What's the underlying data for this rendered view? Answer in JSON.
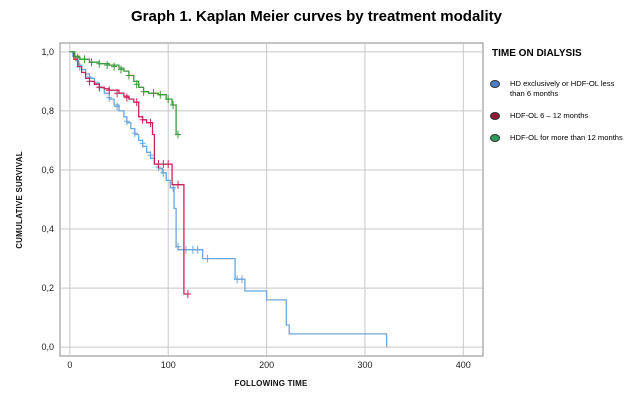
{
  "title": "Graph 1. Kaplan Meier curves by treatment modality",
  "legend": {
    "title": "TIME ON DIALYSIS"
  },
  "chart_data": {
    "type": "line",
    "title": "Graph 1. Kaplan Meier curves by treatment modality",
    "xlabel": "FOLLOWING TIME",
    "ylabel": "CUMULATIVE SURVIVAL",
    "xlim": [
      -10,
      420
    ],
    "ylim": [
      -0.03,
      1.03
    ],
    "xticks": [
      0,
      100,
      200,
      300,
      400
    ],
    "xtick_labels": [
      "0",
      "100",
      "200",
      "300",
      "400"
    ],
    "yticks": [
      0.0,
      0.2,
      0.4,
      0.6,
      0.8,
      1.0
    ],
    "ytick_labels": [
      "0,0",
      "0,2",
      "0,4",
      "0,6",
      "0,8",
      "1,0"
    ],
    "grid": true,
    "legend_position": "right",
    "series": [
      {
        "name": "HD exclusively or HDF-OL less than 6 months",
        "color": "#6ea6dc",
        "legend_color": "#4a7fc8",
        "steps": [
          [
            0,
            1.0
          ],
          [
            3,
            0.985
          ],
          [
            6,
            0.97
          ],
          [
            9,
            0.955
          ],
          [
            12,
            0.94
          ],
          [
            16,
            0.925
          ],
          [
            20,
            0.91
          ],
          [
            25,
            0.895
          ],
          [
            30,
            0.878
          ],
          [
            35,
            0.86
          ],
          [
            40,
            0.84
          ],
          [
            45,
            0.82
          ],
          [
            50,
            0.8
          ],
          [
            55,
            0.78
          ],
          [
            58,
            0.76
          ],
          [
            62,
            0.74
          ],
          [
            66,
            0.72
          ],
          [
            70,
            0.7
          ],
          [
            74,
            0.68
          ],
          [
            78,
            0.66
          ],
          [
            82,
            0.64
          ],
          [
            86,
            0.62
          ],
          [
            90,
            0.605
          ],
          [
            94,
            0.59
          ],
          [
            98,
            0.565
          ],
          [
            102,
            0.54
          ],
          [
            106,
            0.47
          ],
          [
            108,
            0.34
          ],
          [
            110,
            0.33
          ],
          [
            135,
            0.3
          ],
          [
            168,
            0.23
          ],
          [
            178,
            0.19
          ],
          [
            200,
            0.16
          ],
          [
            220,
            0.075
          ],
          [
            223,
            0.045
          ],
          [
            322,
            0.045
          ]
        ],
        "end_x": 322,
        "vline_to": 0.0,
        "censored": [
          [
            10,
            0.95
          ],
          [
            20,
            0.915
          ],
          [
            30,
            0.88
          ],
          [
            40,
            0.845
          ],
          [
            48,
            0.815
          ],
          [
            58,
            0.765
          ],
          [
            66,
            0.725
          ],
          [
            74,
            0.69
          ],
          [
            82,
            0.65
          ],
          [
            90,
            0.61
          ],
          [
            95,
            0.59
          ],
          [
            105,
            0.54
          ],
          [
            110,
            0.34
          ],
          [
            118,
            0.33
          ],
          [
            125,
            0.33
          ],
          [
            130,
            0.33
          ],
          [
            140,
            0.3
          ],
          [
            170,
            0.23
          ],
          [
            175,
            0.23
          ]
        ]
      },
      {
        "name": "HDF-OL 6 – 12 months",
        "color": "#c8265a",
        "legend_color": "#8e1a34",
        "steps": [
          [
            0,
            1.0
          ],
          [
            4,
            0.975
          ],
          [
            8,
            0.95
          ],
          [
            12,
            0.93
          ],
          [
            16,
            0.91
          ],
          [
            20,
            0.9
          ],
          [
            25,
            0.89
          ],
          [
            30,
            0.88
          ],
          [
            35,
            0.875
          ],
          [
            40,
            0.87
          ],
          [
            50,
            0.86
          ],
          [
            55,
            0.85
          ],
          [
            60,
            0.84
          ],
          [
            65,
            0.83
          ],
          [
            70,
            0.78
          ],
          [
            74,
            0.77
          ],
          [
            78,
            0.76
          ],
          [
            84,
            0.72
          ],
          [
            86,
            0.62
          ],
          [
            104,
            0.55
          ],
          [
            116,
            0.18
          ]
        ],
        "end_x": 120,
        "censored": [
          [
            20,
            0.9
          ],
          [
            30,
            0.88
          ],
          [
            40,
            0.87
          ],
          [
            48,
            0.86
          ],
          [
            58,
            0.845
          ],
          [
            68,
            0.83
          ],
          [
            74,
            0.77
          ],
          [
            82,
            0.76
          ],
          [
            90,
            0.62
          ],
          [
            95,
            0.62
          ],
          [
            100,
            0.62
          ],
          [
            110,
            0.55
          ],
          [
            120,
            0.18
          ]
        ]
      },
      {
        "name": "HDF-OL for more than 12 months",
        "color": "#3d9a3d",
        "legend_color": "#2f9b5a",
        "steps": [
          [
            0,
            1.0
          ],
          [
            5,
            0.985
          ],
          [
            10,
            0.975
          ],
          [
            20,
            0.965
          ],
          [
            30,
            0.96
          ],
          [
            40,
            0.955
          ],
          [
            50,
            0.945
          ],
          [
            55,
            0.935
          ],
          [
            60,
            0.92
          ],
          [
            65,
            0.9
          ],
          [
            70,
            0.88
          ],
          [
            75,
            0.865
          ],
          [
            80,
            0.86
          ],
          [
            90,
            0.855
          ],
          [
            98,
            0.84
          ],
          [
            104,
            0.82
          ],
          [
            108,
            0.72
          ]
        ],
        "end_x": 112,
        "censored": [
          [
            8,
            0.98
          ],
          [
            15,
            0.975
          ],
          [
            22,
            0.965
          ],
          [
            30,
            0.96
          ],
          [
            38,
            0.955
          ],
          [
            45,
            0.95
          ],
          [
            52,
            0.94
          ],
          [
            60,
            0.92
          ],
          [
            68,
            0.89
          ],
          [
            75,
            0.865
          ],
          [
            85,
            0.86
          ],
          [
            92,
            0.855
          ],
          [
            100,
            0.84
          ],
          [
            105,
            0.82
          ],
          [
            110,
            0.72
          ]
        ]
      }
    ]
  }
}
